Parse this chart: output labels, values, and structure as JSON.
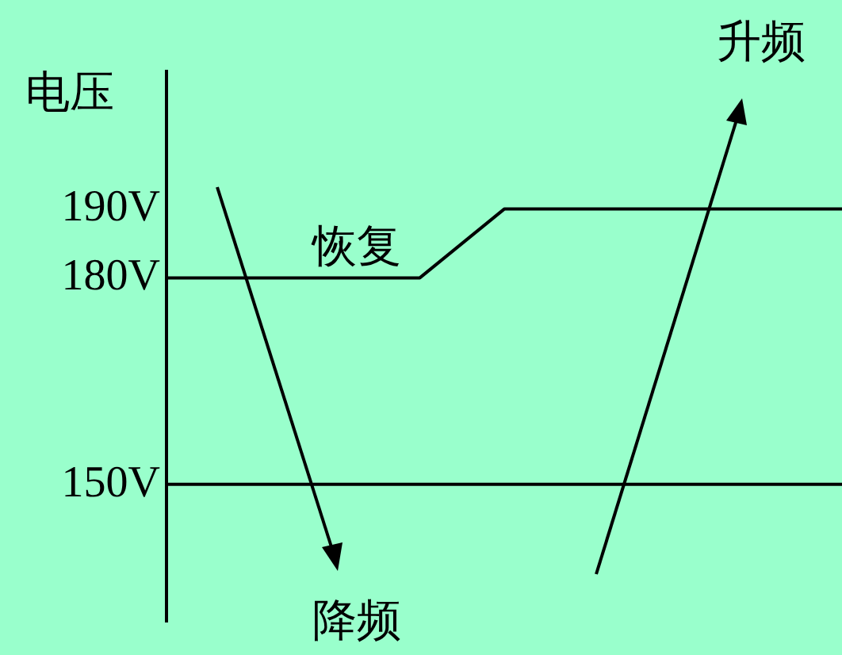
{
  "chart_data": {
    "type": "line",
    "ylabel": "电压",
    "categories": [
      null,
      null,
      null,
      null,
      null,
      null,
      null,
      null,
      null
    ],
    "series": [
      {
        "color": "#000000",
        "values": [
          180,
          180,
          180,
          180,
          190,
          190,
          190,
          190,
          190
        ]
      }
    ],
    "ylim": [
      130,
      210
    ],
    "yticks": [
      {
        "value": 150,
        "label": "150V"
      },
      {
        "value": 180,
        "label": "180V"
      },
      {
        "value": 190,
        "label": "190V"
      }
    ],
    "ref_lines": [
      {
        "axis": "y",
        "value": 150,
        "color": "#000000"
      }
    ],
    "annotations": [
      "恢复",
      "降频",
      "升频"
    ],
    "tick_labels": "y",
    "grid": false,
    "legend": false,
    "marker": "none",
    "line_style": "solid"
  }
}
